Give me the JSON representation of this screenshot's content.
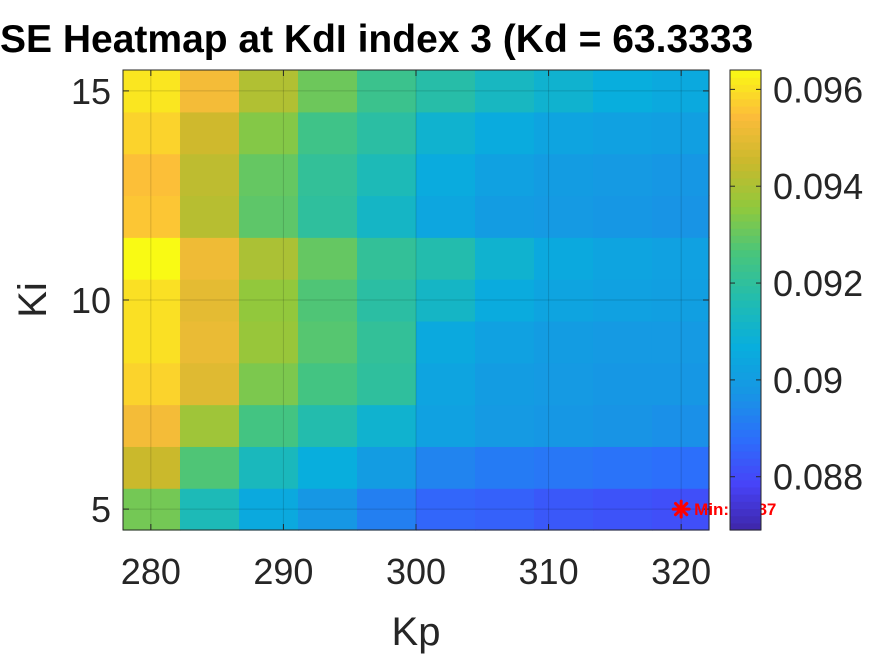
{
  "chart_data": {
    "type": "heatmap",
    "title": "SE Heatmap at KdI index 3 (Kd = 63.3333",
    "xlabel": "Kp",
    "ylabel": "Ki",
    "x_ticks": [
      280,
      290,
      300,
      310,
      320
    ],
    "x_tick_labels": [
      "280",
      "290",
      "300",
      "310",
      "320"
    ],
    "y_ticks": [
      5,
      10,
      15
    ],
    "y_tick_labels": [
      "5",
      "10",
      "15"
    ],
    "xlim": [
      277.9,
      322.1
    ],
    "ylim": [
      4.5,
      15.5
    ],
    "x": [
      280,
      284.4,
      288.9,
      293.3,
      297.8,
      302.2,
      306.7,
      311.1,
      315.6,
      320
    ],
    "y": [
      5,
      6,
      7,
      8,
      9,
      10,
      11,
      12,
      13,
      14,
      15
    ],
    "z": [
      [
        0.0932,
        0.0915,
        0.0905,
        0.0898,
        0.0892,
        0.0886,
        0.0885,
        0.0883,
        0.0882,
        0.0881
      ],
      [
        0.0945,
        0.0927,
        0.0914,
        0.0907,
        0.09,
        0.0893,
        0.0891,
        0.089,
        0.0889,
        0.0888
      ],
      [
        0.0953,
        0.0938,
        0.0925,
        0.0917,
        0.091,
        0.0902,
        0.0899,
        0.0898,
        0.0897,
        0.0896
      ],
      [
        0.0958,
        0.0949,
        0.0933,
        0.0925,
        0.092,
        0.0903,
        0.09,
        0.0899,
        0.0898,
        0.0898
      ],
      [
        0.096,
        0.0951,
        0.0937,
        0.0928,
        0.0921,
        0.0905,
        0.0902,
        0.09,
        0.0899,
        0.0899
      ],
      [
        0.096,
        0.095,
        0.0936,
        0.0927,
        0.0919,
        0.0912,
        0.0906,
        0.0903,
        0.0902,
        0.0901
      ],
      [
        0.0964,
        0.0952,
        0.094,
        0.093,
        0.0921,
        0.0917,
        0.091,
        0.0905,
        0.0903,
        0.0902
      ],
      [
        0.0956,
        0.0942,
        0.0929,
        0.092,
        0.0912,
        0.0904,
        0.09,
        0.0899,
        0.0898,
        0.0897
      ],
      [
        0.0955,
        0.0943,
        0.093,
        0.0921,
        0.0915,
        0.0906,
        0.0902,
        0.09,
        0.0899,
        0.0898
      ],
      [
        0.0958,
        0.0946,
        0.0934,
        0.0924,
        0.0919,
        0.091,
        0.0906,
        0.0903,
        0.0902,
        0.0901
      ],
      [
        0.0961,
        0.0953,
        0.0941,
        0.0931,
        0.0923,
        0.0918,
        0.0913,
        0.091,
        0.0907,
        0.0905
      ]
    ],
    "colorbar": {
      "min": 0.0869,
      "max": 0.0964,
      "ticks": [
        0.088,
        0.09,
        0.092,
        0.094,
        0.096
      ],
      "tick_labels": [
        "0.088",
        "0.09",
        "0.092",
        "0.094",
        "0.096"
      ],
      "colormap": "parula",
      "stops": [
        "#3e26a8",
        "#4743f8",
        "#2c6ffb",
        "#1796e4",
        "#08aedd",
        "#21bcb0",
        "#47c57d",
        "#8fc93d",
        "#cab92c",
        "#fcbc3a",
        "#f9fa14"
      ]
    },
    "marker": {
      "x": 320,
      "y": 5,
      "symbol": "*",
      "color": "#ff0000",
      "label": "Min: 0.087"
    },
    "grid": true,
    "legend": "none"
  }
}
